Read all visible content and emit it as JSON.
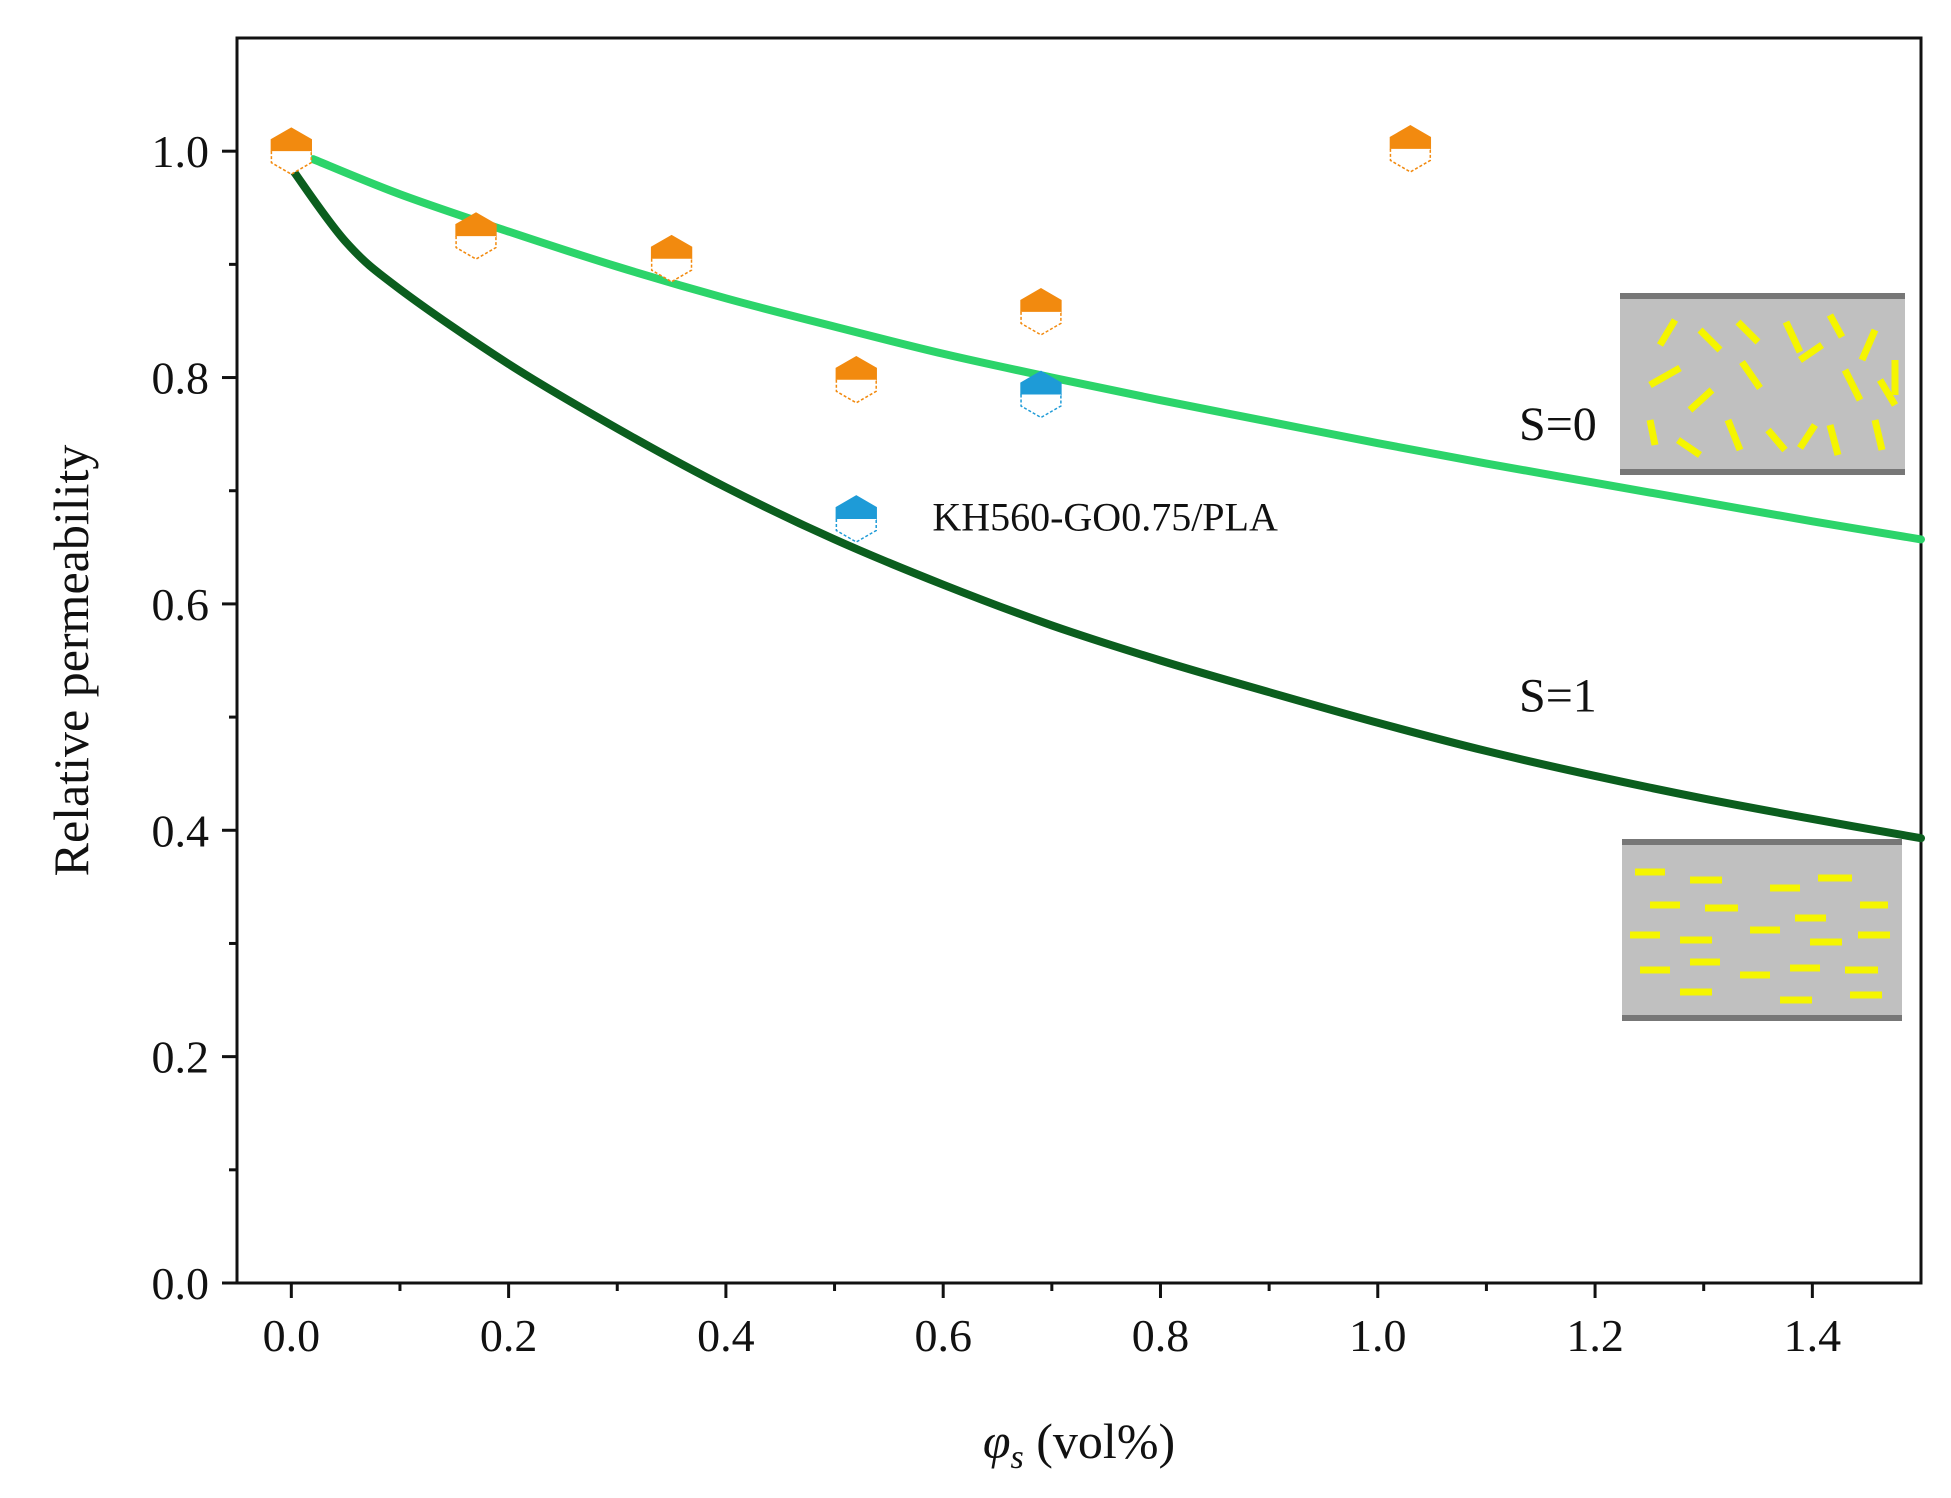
{
  "chart_data": {
    "type": "scatter",
    "xlabel": {
      "symbol": "φ",
      "subscript": "s",
      "unit": " (vol%)"
    },
    "ylabel": "Relative permeability",
    "xlim": [
      -0.05,
      1.5
    ],
    "ylim": [
      0.0,
      1.1
    ],
    "x_ticks": [
      "0.0",
      "0.2",
      "0.4",
      "0.6",
      "0.8",
      "1.0",
      "1.2",
      "1.4"
    ],
    "y_ticks": [
      "0.0",
      "0.2",
      "0.4",
      "0.6",
      "0.8",
      "1.0"
    ],
    "grid": false,
    "series": [
      {
        "kind": "points",
        "color": "#F28A0F",
        "points": [
          {
            "x": 0.0,
            "y": 1.0
          },
          {
            "x": 0.17,
            "y": 0.925
          },
          {
            "x": 0.35,
            "y": 0.905
          },
          {
            "x": 0.52,
            "y": 0.798
          },
          {
            "x": 0.69,
            "y": 0.858
          },
          {
            "x": 1.03,
            "y": 1.002
          }
        ]
      },
      {
        "kind": "points",
        "color": "#1E9BD7",
        "points": [
          {
            "x": 0.52,
            "y": 0.675
          },
          {
            "x": 0.69,
            "y": 0.785
          }
        ]
      },
      {
        "kind": "curve",
        "name": "S=0",
        "color": "#2CD46A",
        "x": [
          0.02,
          0.1,
          0.2,
          0.3,
          0.4,
          0.5,
          0.6,
          0.7,
          0.8,
          0.9,
          1.0,
          1.1,
          1.2,
          1.3,
          1.4,
          1.5
        ],
        "y": [
          0.993,
          0.962,
          0.929,
          0.898,
          0.87,
          0.845,
          0.821,
          0.8,
          0.78,
          0.761,
          0.742,
          0.724,
          0.707,
          0.69,
          0.673,
          0.657
        ]
      },
      {
        "kind": "curve",
        "name": "S=1",
        "color": "#0B5E1E",
        "x": [
          0.0,
          0.05,
          0.1,
          0.2,
          0.3,
          0.4,
          0.5,
          0.6,
          0.7,
          0.8,
          0.9,
          1.0,
          1.1,
          1.2,
          1.3,
          1.4,
          1.5
        ],
        "y": [
          0.985,
          0.92,
          0.878,
          0.812,
          0.755,
          0.703,
          0.657,
          0.617,
          0.581,
          0.55,
          0.522,
          0.495,
          0.47,
          0.448,
          0.428,
          0.41,
          0.393
        ]
      }
    ],
    "annotations": [
      {
        "text": "S=0",
        "x": 1.13,
        "y": 0.745
      },
      {
        "text": "S=1",
        "x": 1.13,
        "y": 0.505
      },
      {
        "text": "KH560-GO0.75/PLA",
        "x": 0.59,
        "y": 0.665
      }
    ]
  }
}
